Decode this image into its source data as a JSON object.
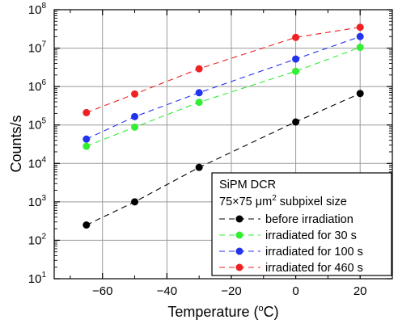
{
  "chart_data": {
    "type": "scatter",
    "title": "",
    "xlabel": "Temperature (",
    "xlabel_unit": "o",
    "xlabel_end": "C)",
    "ylabel": "Counts/s",
    "xlim": [
      -75,
      30
    ],
    "ylim_log10": [
      1,
      8
    ],
    "y_scale": "log",
    "grid": true,
    "legend_position": "bottom-right",
    "legend_title_line1": "SiPM DCR",
    "legend_title_line2_pre": "75×75 μm",
    "legend_title_line2_sup": "2",
    "legend_title_line2_post": " subpixel size",
    "x_ticks": [
      -60,
      -40,
      -20,
      0,
      20
    ],
    "x_tick_labels": [
      "−60",
      "−40",
      "−20",
      "0",
      "20"
    ],
    "y_ticks_log10": [
      1,
      2,
      3,
      4,
      5,
      6,
      7,
      8
    ],
    "series": [
      {
        "name": "before irradiation",
        "color": "#000000",
        "x": [
          -65,
          -50,
          -30,
          0,
          20
        ],
        "y": [
          250,
          1000,
          7900,
          120000,
          660000
        ]
      },
      {
        "name": "irradiated for 30 s",
        "color": "#33ee33",
        "x": [
          -65,
          -50,
          -30,
          0,
          20
        ],
        "y": [
          28000,
          88000,
          390000,
          2500000,
          10500000
        ]
      },
      {
        "name": "irradiated for 100 s",
        "color": "#2233ee",
        "x": [
          -65,
          -50,
          -30,
          0,
          20
        ],
        "y": [
          43000,
          165000,
          690000,
          5200000,
          20000000
        ]
      },
      {
        "name": "irradiated for 460 s",
        "color": "#ee2222",
        "x": [
          -65,
          -50,
          -30,
          0,
          20
        ],
        "y": [
          210000,
          640000,
          2900000,
          19000000,
          35000000
        ]
      }
    ]
  }
}
